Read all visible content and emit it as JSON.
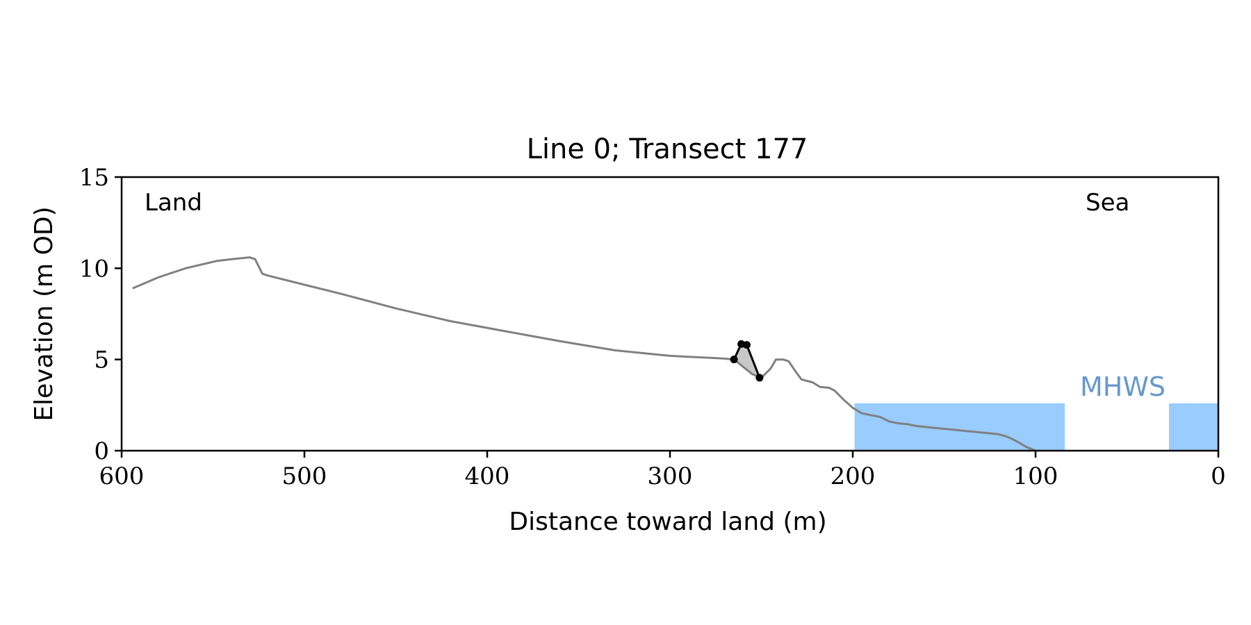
{
  "chart_data": {
    "type": "line",
    "title": "Line 0; Transect 177",
    "xlabel": "Distance toward land (m)",
    "ylabel": "Elevation (m OD)",
    "xlim": [
      600,
      0
    ],
    "ylim": [
      0,
      15
    ],
    "x_ticks": [
      600,
      500,
      400,
      300,
      200,
      100,
      0
    ],
    "y_ticks": [
      0,
      5,
      10,
      15
    ],
    "grid": false,
    "annotations": {
      "land": "Land",
      "sea": "Sea",
      "mhws": "MHWS"
    },
    "colors": {
      "profile": "#808080",
      "highlight": "#000000",
      "fill": "#c8c8c8",
      "water": "#99ccff",
      "mhws_label": "#6699cc"
    },
    "mhws_level": 2.6,
    "water_regions": [
      {
        "x_start": 199,
        "x_end": 84
      },
      {
        "x_start": 27,
        "x_end": 0
      }
    ],
    "series": [
      {
        "x": [
          594,
          580,
          565,
          548,
          540,
          530,
          527,
          523,
          520,
          500,
          480,
          450,
          420,
          390,
          360,
          330,
          300,
          290,
          280,
          270,
          265,
          255,
          250,
          245,
          242,
          238,
          235,
          231,
          228,
          222,
          218,
          213,
          210,
          205,
          200,
          195,
          190,
          185,
          180,
          175,
          170,
          165,
          160,
          155,
          150,
          145,
          140,
          135,
          130,
          125,
          120,
          115,
          110,
          105,
          100
        ],
        "values": [
          8.9,
          9.5,
          10.0,
          10.4,
          10.5,
          10.6,
          10.5,
          9.7,
          9.6,
          9.1,
          8.6,
          7.8,
          7.1,
          6.55,
          6.0,
          5.5,
          5.2,
          5.15,
          5.1,
          5.05,
          5.0,
          4.2,
          4.0,
          4.5,
          5.0,
          5.0,
          4.9,
          4.3,
          3.9,
          3.75,
          3.5,
          3.45,
          3.3,
          2.8,
          2.35,
          2.05,
          1.95,
          1.85,
          1.6,
          1.5,
          1.45,
          1.35,
          1.3,
          1.25,
          1.2,
          1.15,
          1.1,
          1.05,
          1.0,
          0.95,
          0.9,
          0.75,
          0.5,
          0.2,
          0.0
        ]
      },
      {
        "x": [
          265,
          261,
          258,
          251
        ],
        "values": [
          5.0,
          5.85,
          5.8,
          4.0
        ]
      }
    ]
  }
}
